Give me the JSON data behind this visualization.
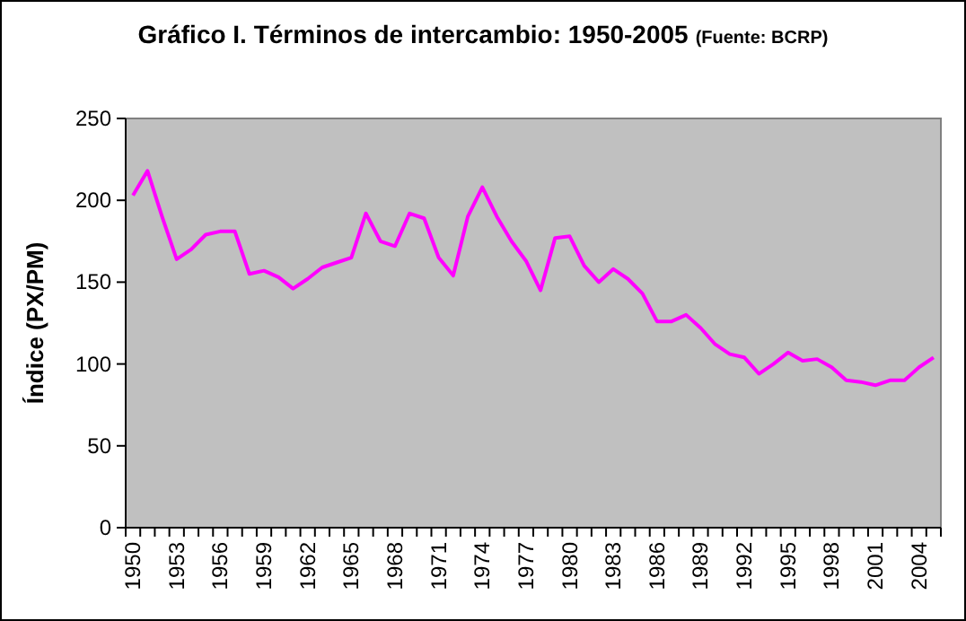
{
  "chart_data": {
    "type": "line",
    "title": "Gráfico I. Términos de intercambio: 1950-2005",
    "annotations": [
      "(Fuente: BCRP)"
    ],
    "ylabel": "Índice (PX/PM)",
    "categories": [
      "1950",
      null,
      null,
      "1953",
      null,
      null,
      "1956",
      null,
      null,
      "1959",
      null,
      null,
      "1962",
      null,
      null,
      "1965",
      null,
      null,
      "1968",
      null,
      null,
      "1971",
      null,
      null,
      "1974",
      null,
      null,
      "1977",
      null,
      null,
      "1980",
      null,
      null,
      "1983",
      null,
      null,
      "1986",
      null,
      null,
      "1989",
      null,
      null,
      "1992",
      null,
      null,
      "1995",
      null,
      null,
      "1998",
      null,
      null,
      "2001",
      null,
      null,
      "2004",
      null
    ],
    "series": [
      {
        "color": "#ff00ff",
        "values": [
          203,
          218,
          190,
          164,
          170,
          179,
          181,
          181,
          155,
          157,
          153,
          146,
          152,
          159,
          162,
          165,
          192,
          175,
          172,
          192,
          189,
          165,
          154,
          190,
          208,
          190,
          175,
          163,
          145,
          177,
          178,
          160,
          150,
          158,
          152,
          143,
          126,
          126,
          130,
          122,
          112,
          106,
          104,
          94,
          100,
          107,
          102,
          103,
          98,
          90,
          89,
          87,
          90,
          90,
          98,
          104
        ]
      }
    ],
    "ylim": [
      0,
      250
    ],
    "yticks": [
      0,
      50,
      100,
      150,
      200,
      250
    ],
    "grid": false,
    "marker": "none",
    "line_style": "solid"
  }
}
